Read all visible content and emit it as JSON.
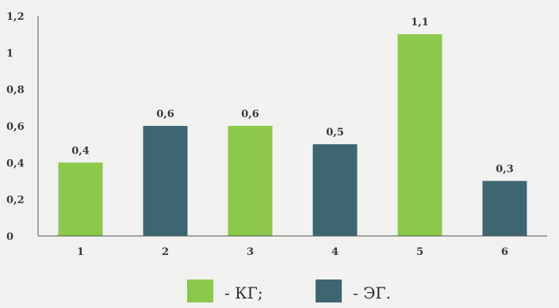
{
  "chart_data": {
    "type": "bar",
    "categories": [
      "1",
      "2",
      "3",
      "4",
      "5",
      "6"
    ],
    "values": [
      0.4,
      0.6,
      0.6,
      0.5,
      1.1,
      0.3
    ],
    "value_labels": [
      "0,4",
      "0,6",
      "0,6",
      "0,5",
      "1,1",
      "0,3"
    ],
    "bar_series": [
      0,
      1,
      0,
      1,
      0,
      1
    ],
    "series": [
      {
        "name": "- КГ;",
        "color": "#8cc84b"
      },
      {
        "name": "- ЭГ.",
        "color": "#3f6670"
      }
    ],
    "ylim": [
      0,
      1.2
    ],
    "yticks": [
      0,
      0.2,
      0.4,
      0.6,
      0.8,
      1,
      1.2
    ],
    "ytick_labels": [
      "0",
      "0,2",
      "0,4",
      "0,6",
      "0,8",
      "1",
      "1,2"
    ],
    "grid": false,
    "legend_position": "bottom-center"
  }
}
